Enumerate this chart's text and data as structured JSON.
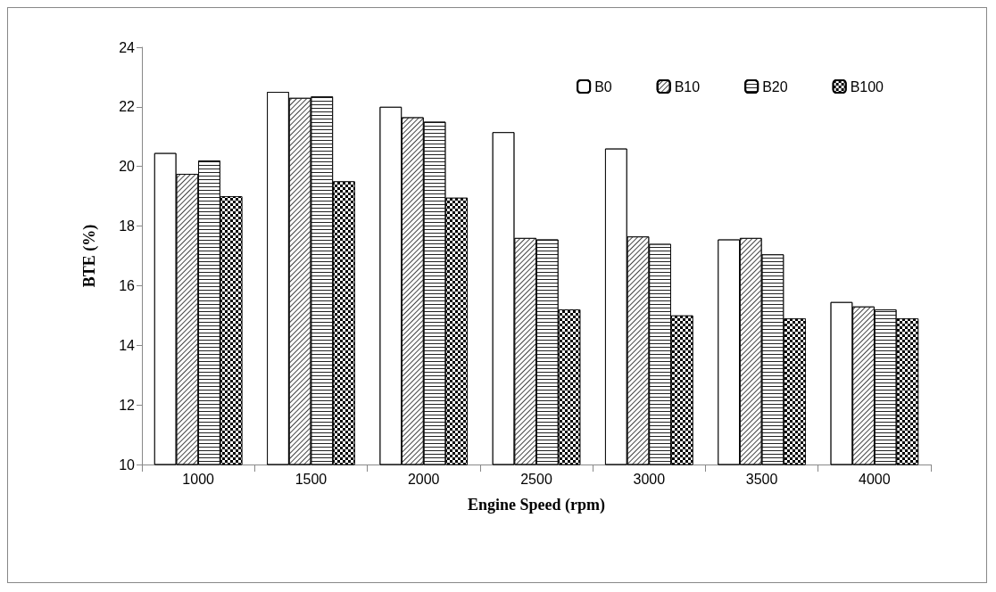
{
  "chart_data": {
    "type": "bar",
    "xlabel": "Engine Speed (rpm)",
    "ylabel": "BTE (%)",
    "categories": [
      "1000",
      "1500",
      "2000",
      "2500",
      "3000",
      "3500",
      "4000"
    ],
    "series": [
      {
        "name": "B0",
        "color": "#ffffff",
        "values": [
          20.45,
          22.5,
          22.0,
          21.15,
          20.6,
          17.55,
          15.45
        ]
      },
      {
        "name": "B10",
        "color": "#ffffff",
        "values": [
          19.75,
          22.3,
          21.65,
          17.6,
          17.65,
          17.6,
          15.3
        ]
      },
      {
        "name": "B20",
        "color": "#ffffff",
        "values": [
          20.2,
          22.35,
          21.5,
          17.55,
          17.4,
          17.05,
          15.2
        ]
      },
      {
        "name": "B100",
        "color": "#000000",
        "values": [
          19.0,
          19.5,
          18.95,
          15.2,
          15.0,
          14.9,
          14.9
        ]
      }
    ],
    "ylim": [
      10,
      24
    ],
    "yticks": [
      10,
      12,
      14,
      16,
      18,
      20,
      22,
      24
    ],
    "grid": false,
    "legend": "top right"
  }
}
